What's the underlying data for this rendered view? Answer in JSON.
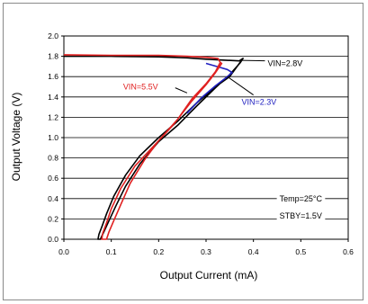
{
  "chart_data": {
    "type": "line",
    "title": "",
    "xlabel": "Output Current (mA)",
    "ylabel": "Output Voltage (V)",
    "xlim": [
      0,
      0.6
    ],
    "ylim": [
      0,
      2.0
    ],
    "x_ticks": [
      "0.0",
      "0.1",
      "0.2",
      "0.3",
      "0.4",
      "0.5",
      "0.6"
    ],
    "y_ticks": [
      "0.0",
      "0.2",
      "0.4",
      "0.6",
      "0.8",
      "1.0",
      "1.2",
      "1.4",
      "1.6",
      "1.8",
      "2.0"
    ],
    "grid": true,
    "series": [
      {
        "name": "VIN=2.8V",
        "color": "#000000",
        "points": [
          [
            0.0,
            1.8
          ],
          [
            0.1,
            1.8
          ],
          [
            0.2,
            1.795
          ],
          [
            0.26,
            1.785
          ],
          [
            0.3,
            1.772
          ],
          [
            0.34,
            1.762
          ],
          [
            0.37,
            1.755
          ],
          [
            0.378,
            1.78
          ],
          [
            0.372,
            1.735
          ],
          [
            0.35,
            1.62
          ],
          [
            0.32,
            1.49
          ],
          [
            0.28,
            1.31
          ],
          [
            0.24,
            1.12
          ],
          [
            0.2,
            0.96
          ],
          [
            0.16,
            0.74
          ],
          [
            0.13,
            0.52
          ],
          [
            0.11,
            0.33
          ],
          [
            0.095,
            0.18
          ],
          [
            0.085,
            0.08
          ],
          [
            0.08,
            0.03
          ],
          [
            0.077,
            0.0
          ],
          [
            0.072,
            0.0
          ],
          [
            0.074,
            0.05
          ],
          [
            0.08,
            0.12
          ],
          [
            0.09,
            0.25
          ],
          [
            0.105,
            0.42
          ],
          [
            0.13,
            0.63
          ],
          [
            0.16,
            0.82
          ],
          [
            0.2,
            1.0
          ],
          [
            0.24,
            1.16
          ],
          [
            0.28,
            1.34
          ],
          [
            0.32,
            1.5
          ],
          [
            0.35,
            1.6
          ],
          [
            0.378,
            1.78
          ]
        ]
      },
      {
        "name": "VIN=2.3V",
        "color": "#2020c0",
        "points": [
          [
            0.3,
            1.73
          ],
          [
            0.33,
            1.69
          ],
          [
            0.345,
            1.67
          ],
          [
            0.355,
            1.64
          ],
          [
            0.345,
            1.6
          ],
          [
            0.32,
            1.51
          ],
          [
            0.29,
            1.39
          ],
          [
            0.26,
            1.24
          ]
        ]
      },
      {
        "name": "VIN=5.5V",
        "color": "#e02020",
        "points": [
          [
            0.0,
            1.815
          ],
          [
            0.1,
            1.81
          ],
          [
            0.2,
            1.81
          ],
          [
            0.26,
            1.8
          ],
          [
            0.3,
            1.79
          ],
          [
            0.325,
            1.78
          ],
          [
            0.33,
            1.74
          ],
          [
            0.32,
            1.65
          ],
          [
            0.3,
            1.53
          ],
          [
            0.27,
            1.38
          ],
          [
            0.24,
            1.18
          ],
          [
            0.2,
            0.97
          ],
          [
            0.17,
            0.78
          ],
          [
            0.14,
            0.55
          ],
          [
            0.12,
            0.34
          ],
          [
            0.105,
            0.18
          ],
          [
            0.095,
            0.07
          ],
          [
            0.09,
            0.0
          ],
          [
            0.08,
            0.0
          ],
          [
            0.082,
            0.06
          ],
          [
            0.09,
            0.16
          ],
          [
            0.1,
            0.3
          ],
          [
            0.12,
            0.5
          ],
          [
            0.15,
            0.72
          ],
          [
            0.19,
            0.92
          ],
          [
            0.23,
            1.12
          ],
          [
            0.27,
            1.36
          ],
          [
            0.3,
            1.52
          ],
          [
            0.32,
            1.64
          ],
          [
            0.333,
            1.73
          ],
          [
            0.33,
            1.74
          ]
        ]
      }
    ],
    "annotations": [
      {
        "text": "VIN=2.8V",
        "color": "#000000"
      },
      {
        "text": "VIN=2.3V",
        "color": "#2020c0"
      },
      {
        "text": "VIN=5.5V",
        "color": "#e02020"
      },
      {
        "text": "Temp=25°C",
        "color": "#000000"
      },
      {
        "text": "STBY=1.5V",
        "color": "#000000"
      }
    ]
  }
}
